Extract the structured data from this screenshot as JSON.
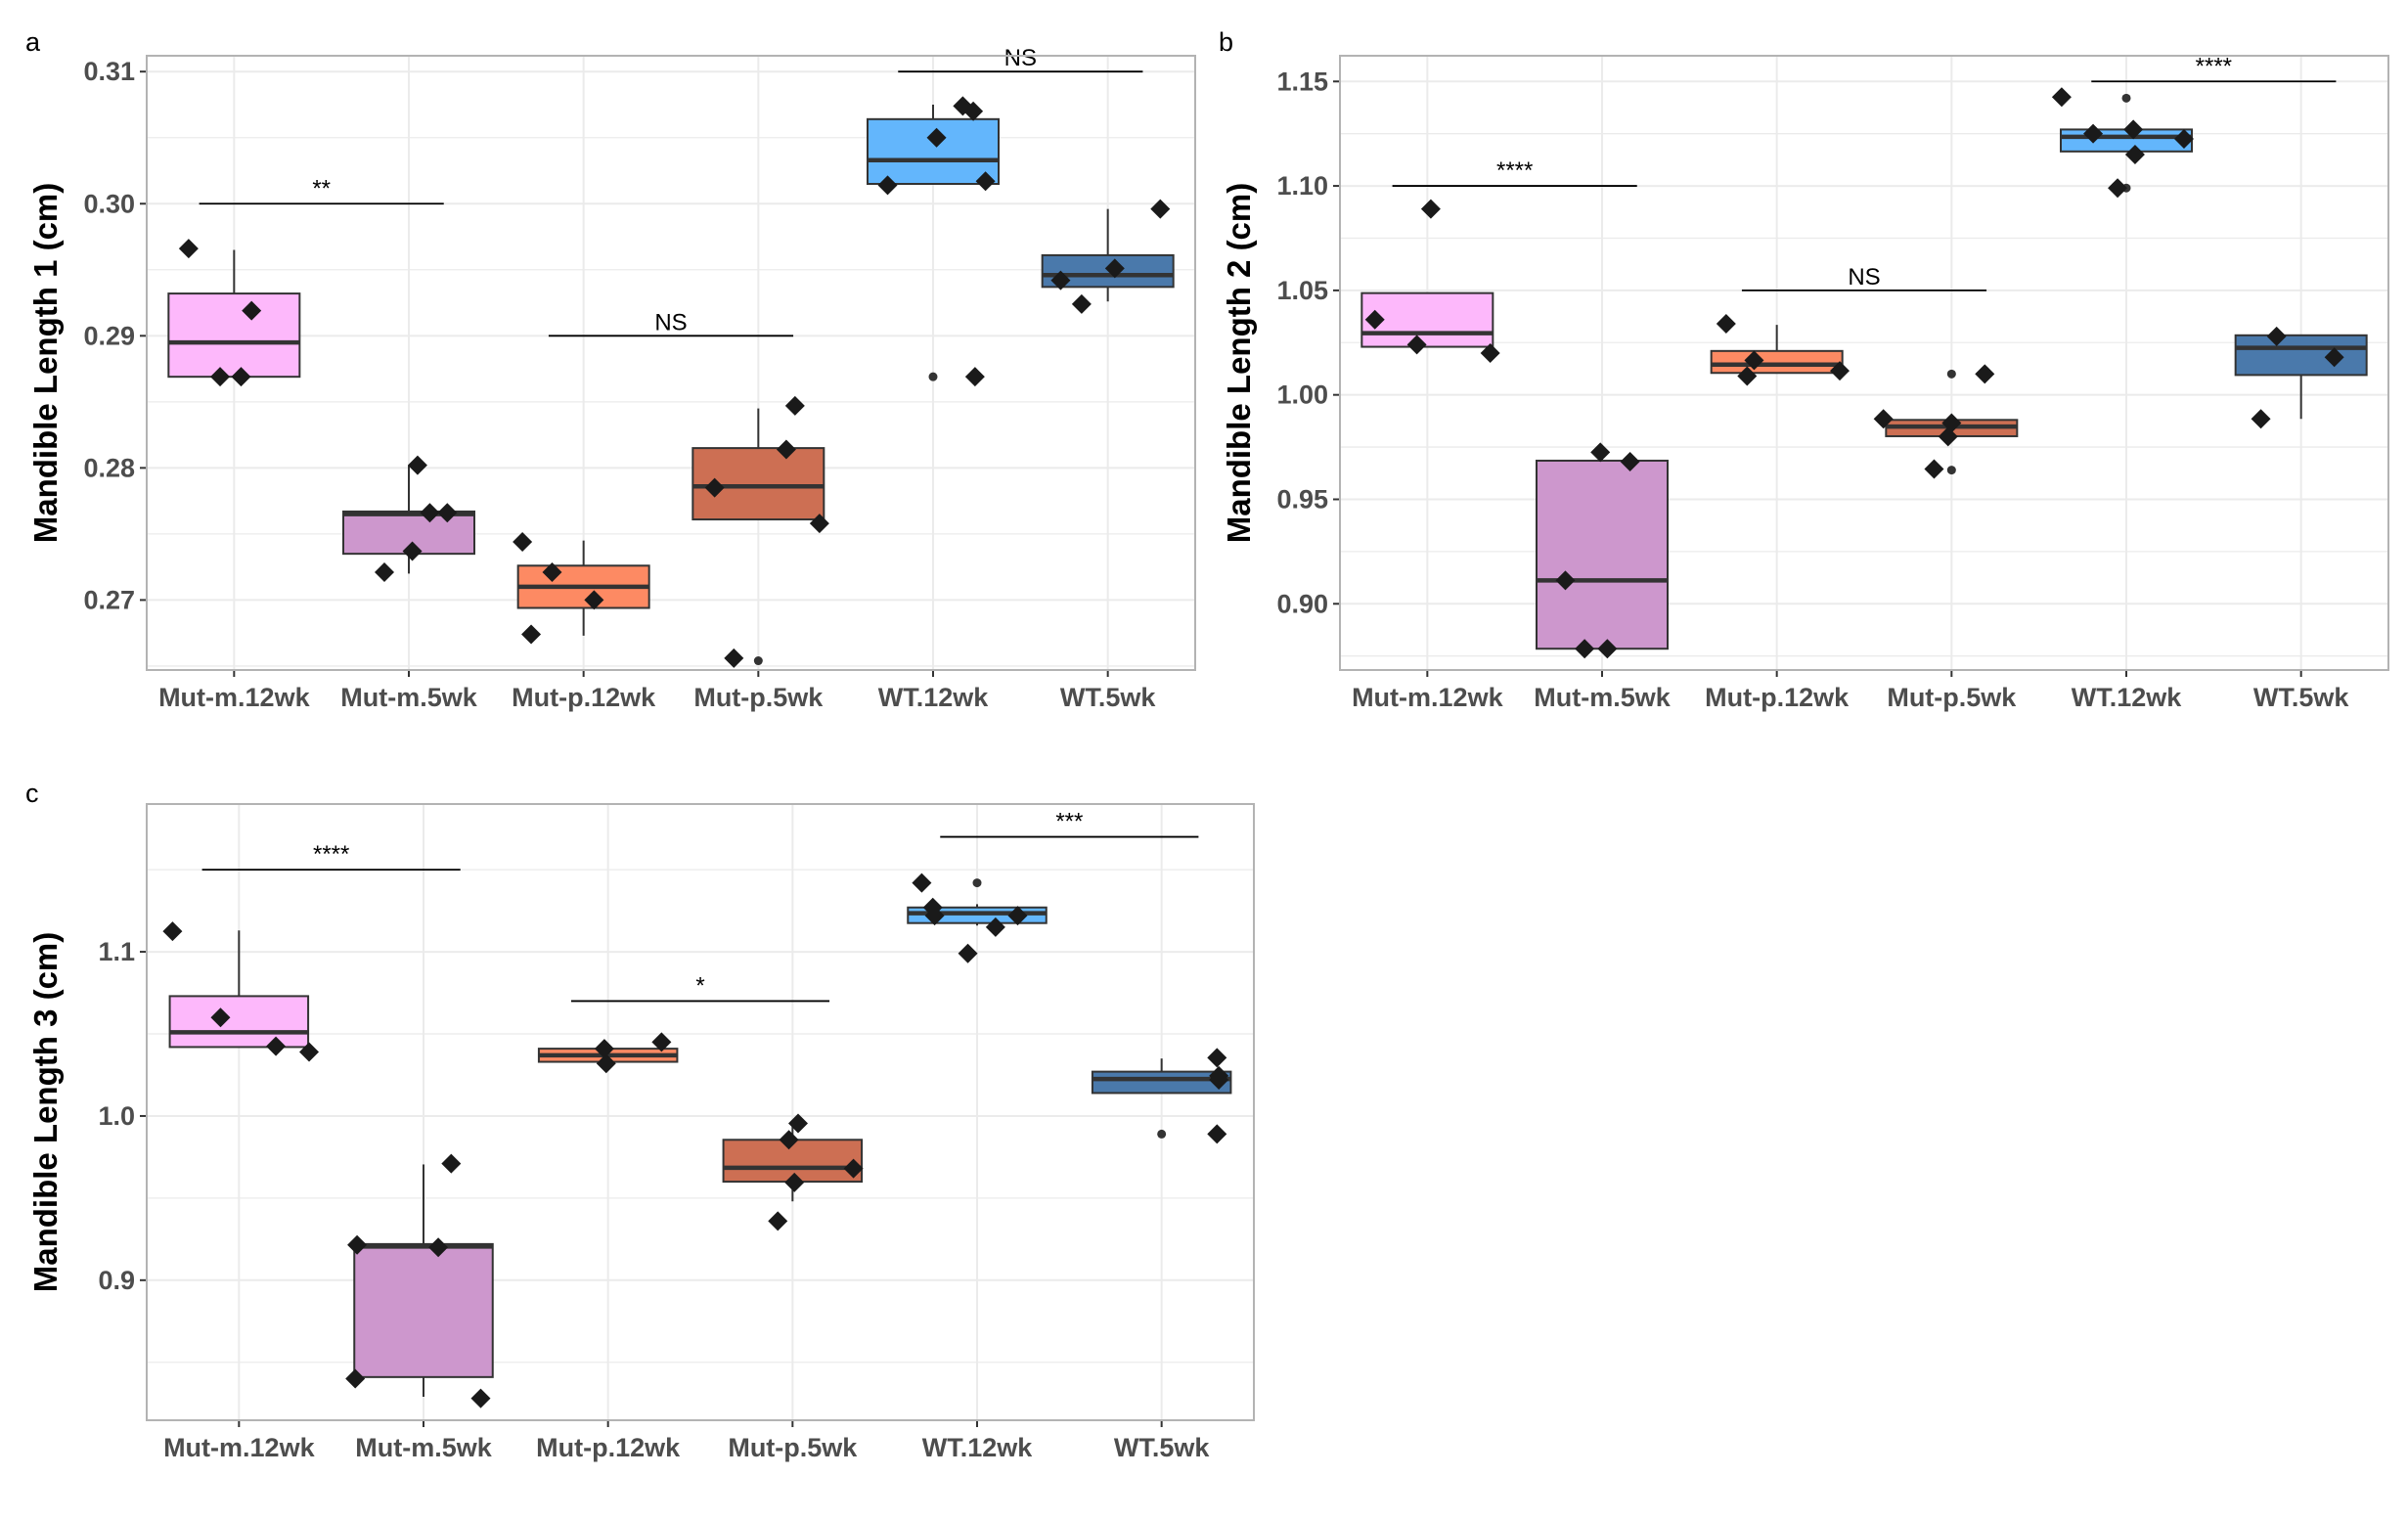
{
  "colors": {
    "Mut-m.12wk": "#fdb8fb",
    "Mut-m.5wk": "#cd97cd",
    "Mut-p.12wk": "#fd8a63",
    "Mut-p.5wk": "#cd6f53",
    "WT.12wk": "#63b6fc",
    "WT.5wk": "#4a79ab",
    "grid": "#ebebeb",
    "panel_border": "#b3b3b3",
    "line": "#333333",
    "point": "#1a1a1a"
  },
  "chart_data": [
    {
      "panel": "a",
      "type": "box",
      "title": "",
      "xlabel": "",
      "ylabel": "Mandible Length 1 (cm)",
      "ylim": [
        0.2647,
        0.3112
      ],
      "yticks": [
        0.27,
        0.28,
        0.29,
        0.3,
        0.31
      ],
      "ytick_labels": [
        "0.27",
        "0.28",
        "0.29",
        "0.30",
        "0.31"
      ],
      "categories": [
        "Mut-m.12wk",
        "Mut-m.5wk",
        "Mut-p.12wk",
        "Mut-p.5wk",
        "WT.12wk",
        "WT.5wk"
      ],
      "boxes": [
        {
          "q1": 0.2869,
          "median": 0.2895,
          "q3": 0.2932,
          "whisker_low": 0.2869,
          "whisker_high": 0.2965,
          "outliers": []
        },
        {
          "q1": 0.2735,
          "median": 0.2765,
          "q3": 0.2767,
          "whisker_low": 0.272,
          "whisker_high": 0.2802,
          "outliers": []
        },
        {
          "q1": 0.2694,
          "median": 0.271,
          "q3": 0.2726,
          "whisker_low": 0.2673,
          "whisker_high": 0.2745,
          "outliers": []
        },
        {
          "q1": 0.2761,
          "median": 0.2786,
          "q3": 0.2815,
          "whisker_low": 0.2761,
          "whisker_high": 0.2845,
          "outliers": [
            0.2654
          ]
        },
        {
          "q1": 0.3015,
          "median": 0.3033,
          "q3": 0.3064,
          "whisker_low": 0.3015,
          "whisker_high": 0.3075,
          "outliers": [
            0.2869
          ]
        },
        {
          "q1": 0.2937,
          "median": 0.2946,
          "q3": 0.2961,
          "whisker_low": 0.2926,
          "whisker_high": 0.2996,
          "outliers": []
        }
      ],
      "points": [
        {
          "cat": 0,
          "dx": -0.26,
          "y": 0.2966
        },
        {
          "cat": 0,
          "dx": -0.08,
          "y": 0.2869
        },
        {
          "cat": 0,
          "dx": 0.04,
          "y": 0.2869
        },
        {
          "cat": 0,
          "dx": 0.1,
          "y": 0.2919
        },
        {
          "cat": 1,
          "dx": -0.14,
          "y": 0.2721
        },
        {
          "cat": 1,
          "dx": 0.02,
          "y": 0.2737
        },
        {
          "cat": 1,
          "dx": 0.05,
          "y": 0.2802
        },
        {
          "cat": 1,
          "dx": 0.12,
          "y": 0.2766
        },
        {
          "cat": 1,
          "dx": 0.22,
          "y": 0.2766
        },
        {
          "cat": 2,
          "dx": -0.35,
          "y": 0.2744
        },
        {
          "cat": 2,
          "dx": -0.3,
          "y": 0.2674
        },
        {
          "cat": 2,
          "dx": -0.18,
          "y": 0.2721
        },
        {
          "cat": 2,
          "dx": 0.06,
          "y": 0.27
        },
        {
          "cat": 3,
          "dx": -0.25,
          "y": 0.2785
        },
        {
          "cat": 3,
          "dx": -0.14,
          "y": 0.2656
        },
        {
          "cat": 3,
          "dx": 0.16,
          "y": 0.2814
        },
        {
          "cat": 3,
          "dx": 0.21,
          "y": 0.2847
        },
        {
          "cat": 3,
          "dx": 0.35,
          "y": 0.2758
        },
        {
          "cat": 4,
          "dx": -0.26,
          "y": 0.3014
        },
        {
          "cat": 4,
          "dx": 0.02,
          "y": 0.305
        },
        {
          "cat": 4,
          "dx": 0.17,
          "y": 0.3074
        },
        {
          "cat": 4,
          "dx": 0.23,
          "y": 0.307
        },
        {
          "cat": 4,
          "dx": 0.24,
          "y": 0.2869
        },
        {
          "cat": 4,
          "dx": 0.3,
          "y": 0.3017
        },
        {
          "cat": 5,
          "dx": -0.27,
          "y": 0.2942
        },
        {
          "cat": 5,
          "dx": -0.15,
          "y": 0.2924
        },
        {
          "cat": 5,
          "dx": 0.04,
          "y": 0.2951
        },
        {
          "cat": 5,
          "dx": 0.3,
          "y": 0.2996
        }
      ],
      "significance": [
        {
          "from": 0,
          "to": 1,
          "y": 0.3,
          "label": "**"
        },
        {
          "from": 2,
          "to": 3,
          "y": 0.29,
          "label": "NS"
        },
        {
          "from": 4,
          "to": 5,
          "y": 0.31,
          "label": "NS"
        }
      ]
    },
    {
      "panel": "b",
      "type": "box",
      "title": "",
      "xlabel": "",
      "ylabel": "Mandible Length 2 (cm)",
      "ylim": [
        0.8683,
        1.1623
      ],
      "yticks": [
        0.9,
        0.95,
        1.0,
        1.05,
        1.1,
        1.15
      ],
      "ytick_labels": [
        "0.90",
        "0.95",
        "1.00",
        "1.05",
        "1.10",
        "1.15"
      ],
      "categories": [
        "Mut-m.12wk",
        "Mut-m.5wk",
        "Mut-p.12wk",
        "Mut-p.5wk",
        "WT.12wk",
        "WT.5wk"
      ],
      "boxes": [
        {
          "q1": 1.023,
          "median": 1.0295,
          "q3": 1.0487,
          "whisker_low": 1.023,
          "whisker_high": 1.0487,
          "outliers": []
        },
        {
          "q1": 0.8785,
          "median": 0.9112,
          "q3": 0.9685,
          "whisker_low": 0.8785,
          "whisker_high": 0.971,
          "outliers": []
        },
        {
          "q1": 1.0105,
          "median": 1.0145,
          "q3": 1.021,
          "whisker_low": 1.0105,
          "whisker_high": 1.0335,
          "outliers": []
        },
        {
          "q1": 0.9802,
          "median": 0.9848,
          "q3": 0.988,
          "whisker_low": 0.9802,
          "whisker_high": 0.988,
          "outliers": [
            0.964,
            1.01
          ]
        },
        {
          "q1": 1.1165,
          "median": 1.1235,
          "q3": 1.127,
          "whisker_low": 1.1165,
          "whisker_high": 1.127,
          "outliers": [
            1.099,
            1.142
          ]
        },
        {
          "q1": 1.0095,
          "median": 1.0225,
          "q3": 1.0285,
          "whisker_low": 0.9885,
          "whisker_high": 1.0285,
          "outliers": []
        }
      ],
      "points": [
        {
          "cat": 0,
          "dx": -0.3,
          "y": 1.036
        },
        {
          "cat": 0,
          "dx": -0.06,
          "y": 1.024
        },
        {
          "cat": 0,
          "dx": 0.02,
          "y": 1.089
        },
        {
          "cat": 0,
          "dx": 0.36,
          "y": 1.02
        },
        {
          "cat": 1,
          "dx": -0.21,
          "y": 0.9112
        },
        {
          "cat": 1,
          "dx": -0.1,
          "y": 0.8785
        },
        {
          "cat": 1,
          "dx": 0.03,
          "y": 0.8785
        },
        {
          "cat": 1,
          "dx": -0.01,
          "y": 0.9725
        },
        {
          "cat": 1,
          "dx": 0.16,
          "y": 0.968
        },
        {
          "cat": 2,
          "dx": -0.29,
          "y": 1.034
        },
        {
          "cat": 2,
          "dx": -0.17,
          "y": 1.009
        },
        {
          "cat": 2,
          "dx": -0.13,
          "y": 1.0165
        },
        {
          "cat": 2,
          "dx": 0.36,
          "y": 1.0115
        },
        {
          "cat": 3,
          "dx": -0.39,
          "y": 0.9885
        },
        {
          "cat": 3,
          "dx": -0.1,
          "y": 0.9645
        },
        {
          "cat": 3,
          "dx": -0.02,
          "y": 0.98
        },
        {
          "cat": 3,
          "dx": 0.0,
          "y": 0.9865
        },
        {
          "cat": 3,
          "dx": 0.19,
          "y": 1.01
        },
        {
          "cat": 4,
          "dx": -0.37,
          "y": 1.1425
        },
        {
          "cat": 4,
          "dx": -0.19,
          "y": 1.125
        },
        {
          "cat": 4,
          "dx": -0.05,
          "y": 1.099
        },
        {
          "cat": 4,
          "dx": 0.04,
          "y": 1.127
        },
        {
          "cat": 4,
          "dx": 0.05,
          "y": 1.115
        },
        {
          "cat": 4,
          "dx": 0.33,
          "y": 1.1225
        },
        {
          "cat": 5,
          "dx": -0.23,
          "y": 0.9885
        },
        {
          "cat": 5,
          "dx": -0.14,
          "y": 1.028
        },
        {
          "cat": 5,
          "dx": 0.19,
          "y": 1.018
        }
      ],
      "significance": [
        {
          "from": 0,
          "to": 1,
          "y": 1.1,
          "label": "****"
        },
        {
          "from": 2,
          "to": 3,
          "y": 1.05,
          "label": "NS"
        },
        {
          "from": 4,
          "to": 5,
          "y": 1.15,
          "label": "****"
        }
      ]
    },
    {
      "panel": "c",
      "type": "box",
      "title": "",
      "xlabel": "",
      "ylabel": "Mandible Length 3 (cm)",
      "ylim": [
        0.8147,
        1.19
      ],
      "yticks": [
        0.9,
        1.0,
        1.1
      ],
      "ytick_labels": [
        "0.9",
        "1.0",
        "1.1"
      ],
      "categories": [
        "Mut-m.12wk",
        "Mut-m.5wk",
        "Mut-p.12wk",
        "Mut-p.5wk",
        "WT.12wk",
        "WT.5wk"
      ],
      "boxes": [
        {
          "q1": 1.042,
          "median": 1.051,
          "q3": 1.073,
          "whisker_low": 1.042,
          "whisker_high": 1.113,
          "outliers": []
        },
        {
          "q1": 0.841,
          "median": 0.9205,
          "q3": 0.922,
          "whisker_low": 0.829,
          "whisker_high": 0.9705,
          "outliers": []
        },
        {
          "q1": 1.033,
          "median": 1.037,
          "q3": 1.041,
          "whisker_low": 1.033,
          "whisker_high": 1.041,
          "outliers": []
        },
        {
          "q1": 0.96,
          "median": 0.9685,
          "q3": 0.9855,
          "whisker_low": 0.948,
          "whisker_high": 0.995,
          "outliers": []
        },
        {
          "q1": 1.1175,
          "median": 1.1235,
          "q3": 1.127,
          "whisker_low": 1.116,
          "whisker_high": 1.129,
          "outliers": [
            1.142
          ]
        },
        {
          "q1": 1.014,
          "median": 1.0225,
          "q3": 1.027,
          "whisker_low": 1.014,
          "whisker_high": 1.035,
          "outliers": [
            0.989
          ]
        }
      ],
      "points": [
        {
          "cat": 0,
          "dx": -0.36,
          "y": 1.1125
        },
        {
          "cat": 0,
          "dx": -0.1,
          "y": 1.06
        },
        {
          "cat": 0,
          "dx": 0.2,
          "y": 1.0425
        },
        {
          "cat": 0,
          "dx": 0.38,
          "y": 1.039
        },
        {
          "cat": 1,
          "dx": -0.37,
          "y": 0.84
        },
        {
          "cat": 1,
          "dx": -0.36,
          "y": 0.9215
        },
        {
          "cat": 1,
          "dx": 0.08,
          "y": 0.92
        },
        {
          "cat": 1,
          "dx": 0.15,
          "y": 0.971
        },
        {
          "cat": 1,
          "dx": 0.31,
          "y": 0.828
        },
        {
          "cat": 2,
          "dx": -0.02,
          "y": 1.041
        },
        {
          "cat": 2,
          "dx": -0.01,
          "y": 1.032
        },
        {
          "cat": 2,
          "dx": 0.29,
          "y": 1.045
        },
        {
          "cat": 3,
          "dx": -0.08,
          "y": 0.936
        },
        {
          "cat": 3,
          "dx": -0.02,
          "y": 0.9855
        },
        {
          "cat": 3,
          "dx": 0.01,
          "y": 0.9595
        },
        {
          "cat": 3,
          "dx": 0.03,
          "y": 0.9955
        },
        {
          "cat": 3,
          "dx": 0.33,
          "y": 0.968
        },
        {
          "cat": 4,
          "dx": -0.3,
          "y": 1.142
        },
        {
          "cat": 4,
          "dx": -0.24,
          "y": 1.127
        },
        {
          "cat": 4,
          "dx": -0.23,
          "y": 1.122
        },
        {
          "cat": 4,
          "dx": -0.05,
          "y": 1.099
        },
        {
          "cat": 4,
          "dx": 0.1,
          "y": 1.115
        },
        {
          "cat": 4,
          "dx": 0.22,
          "y": 1.122
        },
        {
          "cat": 5,
          "dx": 0.3,
          "y": 0.989
        },
        {
          "cat": 5,
          "dx": 0.3,
          "y": 1.0355
        },
        {
          "cat": 5,
          "dx": 0.31,
          "y": 1.022
        },
        {
          "cat": 5,
          "dx": 0.31,
          "y": 1.0245
        }
      ],
      "significance": [
        {
          "from": 0,
          "to": 1,
          "y": 1.15,
          "label": "****"
        },
        {
          "from": 2,
          "to": 3,
          "y": 1.07,
          "label": "*"
        },
        {
          "from": 4,
          "to": 5,
          "y": 1.17,
          "label": "***"
        }
      ]
    }
  ]
}
